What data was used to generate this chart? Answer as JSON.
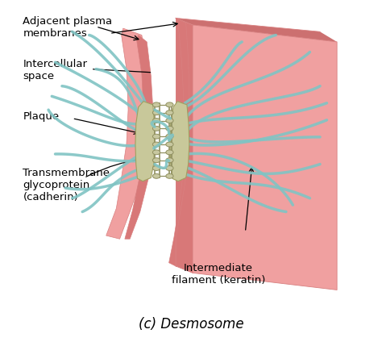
{
  "title": "(c) Desmosome",
  "title_fontsize": 12,
  "labels": {
    "adjacent_plasma": "Adjacent plasma\nmembranes",
    "intercellular": "Intercellular\nspace",
    "plaque": "Plaque",
    "transmembrane": "Transmembrane\nglycoprotein\n(cadherin)",
    "intermediate": "Intermediate\nfilament (keratin)"
  },
  "colors": {
    "cell_body": "#F0A0A0",
    "cell_body_edge": "#D88080",
    "cell_fold": "#CC7070",
    "membrane_strip": "#D87878",
    "plaque_fill": "#C8C89A",
    "plaque_edge": "#A0A060",
    "filament": "#80C4C4",
    "filament_dark": "#50A0A0",
    "cadherin_fill": "#C8C8A0",
    "cadherin_edge": "#909060",
    "background": "#FFFFFF",
    "text": "#000000"
  },
  "figsize": [
    4.74,
    4.24
  ],
  "dpi": 100
}
